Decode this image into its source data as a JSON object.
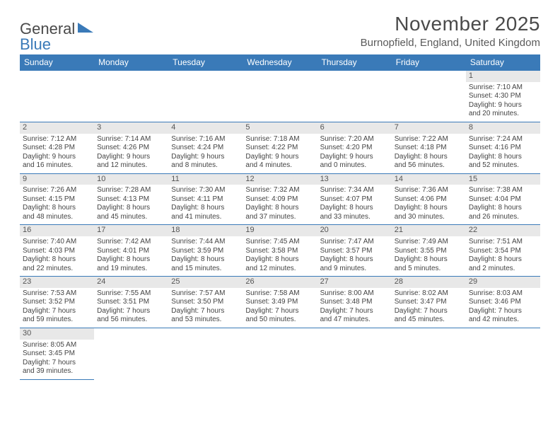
{
  "logo": {
    "general": "General",
    "blue": "Blue"
  },
  "title": "November 2025",
  "location": "Burnopfield, England, United Kingdom",
  "colors": {
    "header_bg": "#3a7ab8",
    "daynum_bg": "#e8e8e8",
    "text": "#444444",
    "border": "#3a7ab8"
  },
  "dayNames": [
    "Sunday",
    "Monday",
    "Tuesday",
    "Wednesday",
    "Thursday",
    "Friday",
    "Saturday"
  ],
  "weeks": [
    [
      null,
      null,
      null,
      null,
      null,
      null,
      {
        "n": "1",
        "sunrise": "Sunrise: 7:10 AM",
        "sunset": "Sunset: 4:30 PM",
        "dl1": "Daylight: 9 hours",
        "dl2": "and 20 minutes."
      }
    ],
    [
      {
        "n": "2",
        "sunrise": "Sunrise: 7:12 AM",
        "sunset": "Sunset: 4:28 PM",
        "dl1": "Daylight: 9 hours",
        "dl2": "and 16 minutes."
      },
      {
        "n": "3",
        "sunrise": "Sunrise: 7:14 AM",
        "sunset": "Sunset: 4:26 PM",
        "dl1": "Daylight: 9 hours",
        "dl2": "and 12 minutes."
      },
      {
        "n": "4",
        "sunrise": "Sunrise: 7:16 AM",
        "sunset": "Sunset: 4:24 PM",
        "dl1": "Daylight: 9 hours",
        "dl2": "and 8 minutes."
      },
      {
        "n": "5",
        "sunrise": "Sunrise: 7:18 AM",
        "sunset": "Sunset: 4:22 PM",
        "dl1": "Daylight: 9 hours",
        "dl2": "and 4 minutes."
      },
      {
        "n": "6",
        "sunrise": "Sunrise: 7:20 AM",
        "sunset": "Sunset: 4:20 PM",
        "dl1": "Daylight: 9 hours",
        "dl2": "and 0 minutes."
      },
      {
        "n": "7",
        "sunrise": "Sunrise: 7:22 AM",
        "sunset": "Sunset: 4:18 PM",
        "dl1": "Daylight: 8 hours",
        "dl2": "and 56 minutes."
      },
      {
        "n": "8",
        "sunrise": "Sunrise: 7:24 AM",
        "sunset": "Sunset: 4:16 PM",
        "dl1": "Daylight: 8 hours",
        "dl2": "and 52 minutes."
      }
    ],
    [
      {
        "n": "9",
        "sunrise": "Sunrise: 7:26 AM",
        "sunset": "Sunset: 4:15 PM",
        "dl1": "Daylight: 8 hours",
        "dl2": "and 48 minutes."
      },
      {
        "n": "10",
        "sunrise": "Sunrise: 7:28 AM",
        "sunset": "Sunset: 4:13 PM",
        "dl1": "Daylight: 8 hours",
        "dl2": "and 45 minutes."
      },
      {
        "n": "11",
        "sunrise": "Sunrise: 7:30 AM",
        "sunset": "Sunset: 4:11 PM",
        "dl1": "Daylight: 8 hours",
        "dl2": "and 41 minutes."
      },
      {
        "n": "12",
        "sunrise": "Sunrise: 7:32 AM",
        "sunset": "Sunset: 4:09 PM",
        "dl1": "Daylight: 8 hours",
        "dl2": "and 37 minutes."
      },
      {
        "n": "13",
        "sunrise": "Sunrise: 7:34 AM",
        "sunset": "Sunset: 4:07 PM",
        "dl1": "Daylight: 8 hours",
        "dl2": "and 33 minutes."
      },
      {
        "n": "14",
        "sunrise": "Sunrise: 7:36 AM",
        "sunset": "Sunset: 4:06 PM",
        "dl1": "Daylight: 8 hours",
        "dl2": "and 30 minutes."
      },
      {
        "n": "15",
        "sunrise": "Sunrise: 7:38 AM",
        "sunset": "Sunset: 4:04 PM",
        "dl1": "Daylight: 8 hours",
        "dl2": "and 26 minutes."
      }
    ],
    [
      {
        "n": "16",
        "sunrise": "Sunrise: 7:40 AM",
        "sunset": "Sunset: 4:03 PM",
        "dl1": "Daylight: 8 hours",
        "dl2": "and 22 minutes."
      },
      {
        "n": "17",
        "sunrise": "Sunrise: 7:42 AM",
        "sunset": "Sunset: 4:01 PM",
        "dl1": "Daylight: 8 hours",
        "dl2": "and 19 minutes."
      },
      {
        "n": "18",
        "sunrise": "Sunrise: 7:44 AM",
        "sunset": "Sunset: 3:59 PM",
        "dl1": "Daylight: 8 hours",
        "dl2": "and 15 minutes."
      },
      {
        "n": "19",
        "sunrise": "Sunrise: 7:45 AM",
        "sunset": "Sunset: 3:58 PM",
        "dl1": "Daylight: 8 hours",
        "dl2": "and 12 minutes."
      },
      {
        "n": "20",
        "sunrise": "Sunrise: 7:47 AM",
        "sunset": "Sunset: 3:57 PM",
        "dl1": "Daylight: 8 hours",
        "dl2": "and 9 minutes."
      },
      {
        "n": "21",
        "sunrise": "Sunrise: 7:49 AM",
        "sunset": "Sunset: 3:55 PM",
        "dl1": "Daylight: 8 hours",
        "dl2": "and 5 minutes."
      },
      {
        "n": "22",
        "sunrise": "Sunrise: 7:51 AM",
        "sunset": "Sunset: 3:54 PM",
        "dl1": "Daylight: 8 hours",
        "dl2": "and 2 minutes."
      }
    ],
    [
      {
        "n": "23",
        "sunrise": "Sunrise: 7:53 AM",
        "sunset": "Sunset: 3:52 PM",
        "dl1": "Daylight: 7 hours",
        "dl2": "and 59 minutes."
      },
      {
        "n": "24",
        "sunrise": "Sunrise: 7:55 AM",
        "sunset": "Sunset: 3:51 PM",
        "dl1": "Daylight: 7 hours",
        "dl2": "and 56 minutes."
      },
      {
        "n": "25",
        "sunrise": "Sunrise: 7:57 AM",
        "sunset": "Sunset: 3:50 PM",
        "dl1": "Daylight: 7 hours",
        "dl2": "and 53 minutes."
      },
      {
        "n": "26",
        "sunrise": "Sunrise: 7:58 AM",
        "sunset": "Sunset: 3:49 PM",
        "dl1": "Daylight: 7 hours",
        "dl2": "and 50 minutes."
      },
      {
        "n": "27",
        "sunrise": "Sunrise: 8:00 AM",
        "sunset": "Sunset: 3:48 PM",
        "dl1": "Daylight: 7 hours",
        "dl2": "and 47 minutes."
      },
      {
        "n": "28",
        "sunrise": "Sunrise: 8:02 AM",
        "sunset": "Sunset: 3:47 PM",
        "dl1": "Daylight: 7 hours",
        "dl2": "and 45 minutes."
      },
      {
        "n": "29",
        "sunrise": "Sunrise: 8:03 AM",
        "sunset": "Sunset: 3:46 PM",
        "dl1": "Daylight: 7 hours",
        "dl2": "and 42 minutes."
      }
    ],
    [
      {
        "n": "30",
        "sunrise": "Sunrise: 8:05 AM",
        "sunset": "Sunset: 3:45 PM",
        "dl1": "Daylight: 7 hours",
        "dl2": "and 39 minutes."
      },
      null,
      null,
      null,
      null,
      null,
      null
    ]
  ]
}
